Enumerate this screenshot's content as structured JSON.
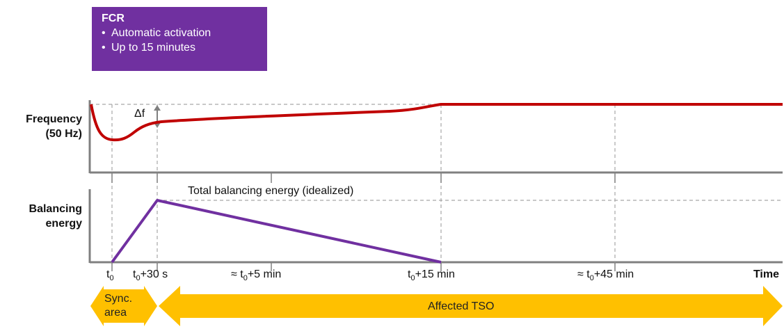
{
  "fcr": {
    "title": "FCR",
    "bullets": [
      "Automatic activation",
      "Up to 15 minutes"
    ]
  },
  "frequency_label": [
    "Frequency",
    "(50 Hz)"
  ],
  "balancing_label": [
    "Balancing",
    "energy"
  ],
  "delta_f": "Δf",
  "total_energy_label": "Total balancing energy (idealized)",
  "time_ticks": {
    "t0": {
      "base": "t",
      "sub": "0",
      "suffix": ""
    },
    "t0_30s": {
      "base": "t",
      "sub": "0",
      "suffix": "+30 s"
    },
    "t0_5min": {
      "prefix": "≈ ",
      "base": "t",
      "sub": "0",
      "suffix": "+5 min"
    },
    "t0_15min": {
      "base": "t",
      "sub": "0",
      "suffix": "+15 min"
    },
    "t0_45min": {
      "prefix": "≈ ",
      "base": "t",
      "sub": "0",
      "suffix": "+45 min"
    }
  },
  "time_axis_label": "Time",
  "arrows": {
    "sync_area": [
      "Sync.",
      "area"
    ],
    "affected_tso": "Affected TSO"
  },
  "colors": {
    "fcr_box": "#7030a0",
    "frequency_line": "#c00000",
    "energy_line": "#7030a0",
    "arrow_fill": "#ffc000",
    "axis": "#808080",
    "guide": "#a6a6a6"
  }
}
